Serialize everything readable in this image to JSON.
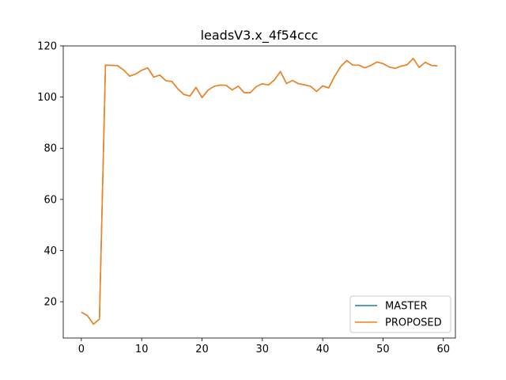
{
  "chart_data": {
    "type": "line",
    "title": "leadsV3.x_4f54ccc",
    "xlabel": "",
    "ylabel": "",
    "xlim": [
      -3.0,
      62.0
    ],
    "ylim": [
      5.8,
      120
    ],
    "xticks": [
      0,
      10,
      20,
      30,
      40,
      50,
      60
    ],
    "yticks": [
      20,
      40,
      60,
      80,
      100,
      120
    ],
    "grid": false,
    "legend_position": "lower-right",
    "x": [
      0,
      1,
      2,
      3,
      4,
      5,
      6,
      7,
      8,
      9,
      10,
      11,
      12,
      13,
      14,
      15,
      16,
      17,
      18,
      19,
      20,
      21,
      22,
      23,
      24,
      25,
      26,
      27,
      28,
      29,
      30,
      31,
      32,
      33,
      34,
      35,
      36,
      37,
      38,
      39,
      40,
      41,
      42,
      43,
      44,
      45,
      46,
      47,
      48,
      49,
      50,
      51,
      52,
      53,
      54,
      55,
      56,
      57,
      58,
      59
    ],
    "series": [
      {
        "name": "MASTER",
        "color": "#1f77b4",
        "values": [
          15.9,
          14.6,
          11.2,
          13.2,
          112.5,
          112.4,
          112.3,
          110.6,
          108.2,
          109.0,
          110.5,
          111.4,
          107.8,
          108.6,
          106.4,
          106.1,
          103.2,
          101.0,
          100.4,
          103.8,
          99.8,
          102.7,
          104.2,
          104.7,
          104.6,
          102.8,
          104.3,
          101.7,
          101.7,
          104.1,
          105.2,
          104.7,
          106.7,
          110.0,
          105.3,
          106.5,
          105.2,
          104.8,
          104.2,
          102.2,
          104.4,
          103.6,
          108.2,
          112.0,
          114.3,
          112.5,
          112.5,
          111.4,
          112.4,
          113.7,
          113.1,
          111.8,
          111.2,
          112.1,
          112.6,
          115.1,
          111.6,
          113.6,
          112.4,
          112.2
        ]
      },
      {
        "name": "PROPOSED",
        "color": "#ff7f0e",
        "values": [
          15.9,
          14.6,
          11.2,
          13.2,
          112.5,
          112.4,
          112.3,
          110.6,
          108.2,
          109.0,
          110.5,
          111.4,
          107.8,
          108.6,
          106.4,
          106.1,
          103.2,
          101.0,
          100.4,
          103.8,
          99.8,
          102.7,
          104.2,
          104.7,
          104.6,
          102.8,
          104.3,
          101.7,
          101.7,
          104.1,
          105.2,
          104.7,
          106.7,
          110.0,
          105.3,
          106.5,
          105.2,
          104.8,
          104.2,
          102.2,
          104.4,
          103.6,
          108.2,
          112.0,
          114.3,
          112.5,
          112.5,
          111.4,
          112.4,
          113.7,
          113.1,
          111.8,
          111.2,
          112.1,
          112.6,
          115.1,
          111.6,
          113.6,
          112.4,
          112.2
        ]
      }
    ]
  }
}
